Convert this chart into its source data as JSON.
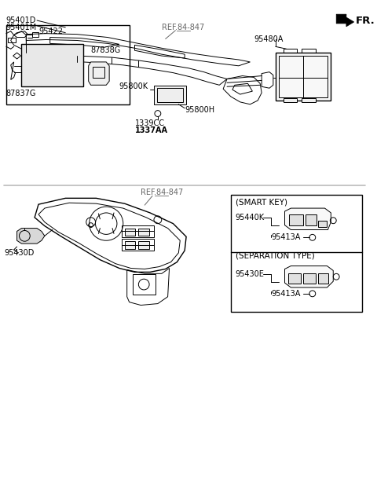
{
  "bg_color": "#ffffff",
  "line_color": "#000000",
  "ref_color": "#666666",
  "fr_label": "FR.",
  "ref_label": "REF.84-847",
  "parts_top": [
    "95401D",
    "95401M",
    "95422",
    "87838G",
    "87837G",
    "95800K",
    "95800H",
    "1339CC",
    "1337AA",
    "95480A"
  ],
  "parts_bottom": [
    "95430D",
    "95440K",
    "95413A",
    "95430E"
  ],
  "smart_key_label": "(SMART KEY)",
  "sep_type_label": "(SEPARATION TYPE)",
  "label_95440K": "95440K",
  "label_95413A": "95413A",
  "label_95430E": "95430E",
  "lw_thin": 0.7,
  "lw_med": 1.0,
  "lw_thick": 1.5,
  "fs_tiny": 6.0,
  "fs_small": 7.0,
  "fs_med": 7.5,
  "fs_large": 9.5
}
